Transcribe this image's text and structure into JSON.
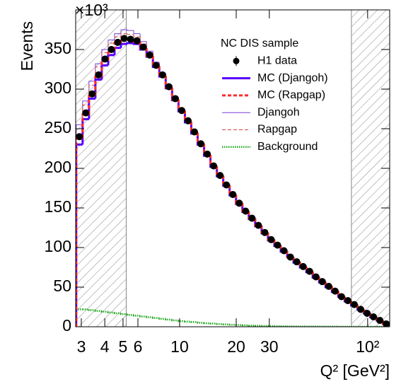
{
  "chart_data": {
    "type": "histogram",
    "y_label": "Events",
    "y_multiplier": "×10³",
    "x_label": "Q² [GeV²]",
    "legend_title": "NC DIS sample",
    "legend": "top right",
    "xscale": "log",
    "xlim": [
      2.8,
      131
    ],
    "ylim": [
      0,
      400
    ],
    "xticks": [
      3,
      4,
      5,
      6,
      10,
      20,
      30,
      {
        "value": 100,
        "label": "10²"
      }
    ],
    "yticks": [
      0,
      50,
      100,
      150,
      200,
      250,
      300,
      350
    ],
    "excluded_regions": [
      [
        2.8,
        5.2
      ],
      [
        82,
        131
      ]
    ],
    "bins": [
      2.818,
      3.048,
      3.296,
      3.565,
      3.855,
      4.169,
      4.508,
      4.875,
      5.272,
      5.702,
      6.166,
      6.668,
      7.211,
      7.798,
      8.433,
      9.12,
      9.863,
      10.67,
      11.53,
      12.47,
      13.49,
      14.59,
      15.78,
      17.06,
      18.45,
      19.95,
      21.58,
      23.33,
      25.23,
      27.29,
      29.51,
      31.92,
      34.51,
      37.33,
      40.36,
      43.65,
      47.21,
      51.05,
      55.21,
      59.7,
      64.57,
      69.82,
      75.51,
      81.66,
      88.31,
      95.5,
      103.3,
      111.7,
      120.8,
      130.6
    ],
    "series": [
      {
        "name": "H1 data",
        "style": "points",
        "color": "#000000",
        "values": [
          240,
          270,
          294,
          318,
          338,
          350,
          359,
          364,
          363,
          361,
          353,
          343,
          330,
          318,
          303,
          288,
          273,
          260,
          246,
          231,
          218,
          203,
          191,
          179,
          167,
          156,
          146,
          137,
          128,
          119,
          110,
          103,
          96,
          88,
          82,
          76,
          70,
          63,
          57,
          51,
          45,
          38,
          33,
          28,
          22,
          17,
          12.5,
          8,
          3.6
        ]
      },
      {
        "name": "MC (Djangoh)",
        "style": "thick",
        "color": "#5500ff",
        "values": [
          230,
          262,
          288,
          312,
          330,
          343,
          352,
          357,
          358,
          357,
          350,
          341,
          328,
          316,
          301,
          286,
          272,
          258,
          244,
          230,
          216,
          202,
          190,
          178,
          166,
          155,
          145,
          136,
          127,
          118,
          109,
          102,
          95,
          88,
          81,
          75,
          69,
          62,
          56,
          50,
          44,
          38,
          32,
          27,
          22,
          17,
          12,
          8,
          3.5
        ]
      },
      {
        "name": "MC (Rapgap)",
        "style": "thick-dashed",
        "color": "#ff2a2a",
        "values": [
          238,
          268,
          292,
          316,
          336,
          349,
          358,
          363,
          363,
          360,
          352,
          342,
          329,
          317,
          302,
          287,
          273,
          259,
          245,
          231,
          217,
          203,
          191,
          179,
          167,
          156,
          146,
          137,
          128,
          119,
          110,
          103,
          96,
          88,
          82,
          76,
          70,
          63,
          57,
          51,
          45,
          38,
          33,
          28,
          22,
          17,
          12.5,
          8,
          3.6
        ]
      },
      {
        "name": "Djangoh",
        "style": "thin",
        "color": "#7b3fe0",
        "values": [
          255,
          285,
          310,
          332,
          350,
          362,
          370,
          375,
          374,
          370,
          360,
          348,
          334,
          320,
          305,
          290,
          275,
          261,
          247,
          232,
          218,
          204,
          192,
          180,
          168,
          157,
          147,
          138,
          129,
          120,
          111,
          104,
          97,
          89,
          83,
          77,
          71,
          64,
          58,
          52,
          46,
          39,
          34,
          29,
          23,
          18,
          13,
          8.5,
          4
        ]
      },
      {
        "name": "Rapgap",
        "style": "thin-dashed",
        "color": "#d94040",
        "values": [
          250,
          280,
          305,
          328,
          346,
          358,
          366,
          370,
          369,
          366,
          357,
          346,
          332,
          319,
          304,
          289,
          274,
          260,
          246,
          232,
          218,
          203,
          191,
          179,
          167,
          156,
          146,
          137,
          128,
          119,
          110,
          103,
          96,
          88,
          82,
          76,
          70,
          63,
          57,
          51,
          45,
          38,
          33,
          28,
          22,
          17,
          12.5,
          8,
          3.6
        ]
      },
      {
        "name": "Background",
        "style": "dotted",
        "color": "#22aa22",
        "values": [
          22,
          22,
          21,
          20,
          19,
          18,
          17,
          16,
          15,
          14,
          13,
          12,
          11,
          10,
          9,
          8,
          7,
          6.5,
          6,
          5,
          4.5,
          4,
          3.5,
          3,
          2.6,
          2.2,
          1.9,
          1.6,
          1.3,
          1.1,
          0.9,
          0.8,
          0.7,
          0.6,
          0.5,
          0.4,
          0.35,
          0.3,
          0.25,
          0.2,
          0.2,
          0.15,
          0.1,
          0.1,
          0.1,
          0.05,
          0.05,
          0.05,
          0.05
        ]
      }
    ]
  }
}
